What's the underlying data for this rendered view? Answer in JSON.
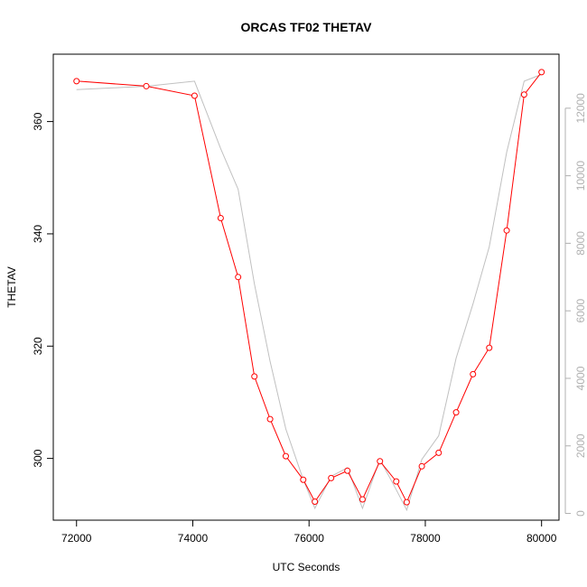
{
  "chart_data": {
    "type": "line",
    "title": "ORCAS TF02 THETAV",
    "xlabel": "UTC Seconds",
    "ylabel": "THETAV",
    "xlim": [
      71600,
      80300
    ],
    "ylim": [
      289,
      372
    ],
    "y2lim": [
      -200,
      13600
    ],
    "x_ticks": [
      72000,
      74000,
      76000,
      78000,
      80000
    ],
    "x_tick_labels": [
      "72000",
      "74000",
      "76000",
      "78000",
      "80000"
    ],
    "y_ticks": [
      300,
      320,
      340,
      360
    ],
    "y_tick_labels": [
      "300",
      "320",
      "340",
      "360"
    ],
    "y2_ticks": [
      0,
      2000,
      4000,
      6000,
      8000,
      10000,
      12000
    ],
    "y2_tick_labels": [
      "0",
      "2000",
      "4000",
      "6000",
      "8000",
      "10000",
      "12000"
    ],
    "grid": false,
    "series": [
      {
        "color": "#ff0000",
        "axis": "left",
        "markers": "open-circle",
        "x": [
          72000,
          73200,
          74030,
          74480,
          74780,
          75060,
          75330,
          75600,
          75900,
          76100,
          76380,
          76660,
          76920,
          77220,
          77500,
          77680,
          77940,
          78230,
          78530,
          78820,
          79100,
          79400,
          79700,
          80000
        ],
        "y": [
          367.2,
          366.3,
          364.6,
          342.8,
          332.3,
          314.6,
          307.0,
          300.4,
          296.2,
          292.3,
          296.5,
          297.8,
          292.7,
          299.5,
          295.9,
          292.2,
          298.6,
          301.0,
          308.2,
          315.0,
          319.7,
          340.6,
          364.8,
          368.8
        ]
      },
      {
        "color": "#c0c0c0",
        "axis": "right",
        "markers": "none",
        "x": [
          72000,
          73200,
          74030,
          74480,
          74780,
          75060,
          75330,
          75600,
          75900,
          76100,
          76380,
          76660,
          76920,
          77220,
          77500,
          77680,
          77940,
          78230,
          78530,
          78820,
          79100,
          79400,
          79700,
          80000
        ],
        "y": [
          12550,
          12650,
          12800,
          10800,
          9600,
          6800,
          4500,
          2500,
          1000,
          150,
          1100,
          1350,
          150,
          1600,
          700,
          100,
          1600,
          2300,
          4600,
          6200,
          7900,
          10700,
          12800,
          13000
        ]
      }
    ]
  }
}
